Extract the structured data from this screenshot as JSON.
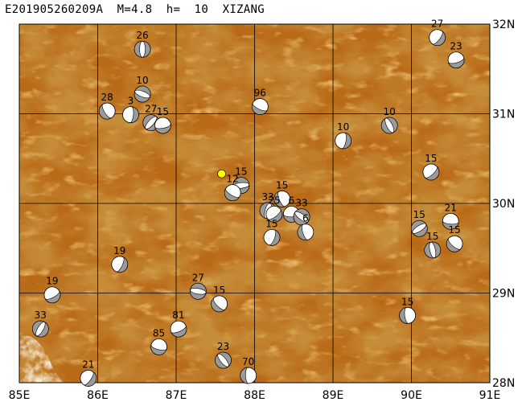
{
  "title": "E201905260209A  M=4.8  h=  10  XIZANG",
  "map": {
    "lon_range": [
      85,
      91
    ],
    "lat_range": [
      28,
      32
    ],
    "lon_ticks": [
      "85E",
      "86E",
      "87E",
      "88E",
      "89E",
      "90E",
      "91E"
    ],
    "lat_ticks": [
      "32N",
      "31N",
      "30N",
      "29N",
      "28N"
    ],
    "terrain_color": "#b96a17",
    "epicenter": {
      "lon": 87.58,
      "lat": 30.33,
      "color": "#ffff00"
    }
  },
  "mechanisms": [
    {
      "depth": "26",
      "lon": 86.57,
      "lat": 31.72
    },
    {
      "depth": "27",
      "lon": 90.33,
      "lat": 31.85
    },
    {
      "depth": "23",
      "lon": 90.57,
      "lat": 31.6
    },
    {
      "depth": "10",
      "lon": 86.57,
      "lat": 31.22
    },
    {
      "depth": "28",
      "lon": 86.12,
      "lat": 31.03
    },
    {
      "depth": "3",
      "lon": 86.42,
      "lat": 30.99
    },
    {
      "depth": "27",
      "lon": 86.68,
      "lat": 30.9
    },
    {
      "depth": "15",
      "lon": 86.83,
      "lat": 30.87
    },
    {
      "depth": "96",
      "lon": 88.07,
      "lat": 31.08
    },
    {
      "depth": "10",
      "lon": 89.72,
      "lat": 30.87
    },
    {
      "depth": "10",
      "lon": 89.13,
      "lat": 30.7
    },
    {
      "depth": "15",
      "lon": 90.25,
      "lat": 30.35
    },
    {
      "depth": "15",
      "lon": 87.83,
      "lat": 30.2
    },
    {
      "depth": "12",
      "lon": 87.72,
      "lat": 30.12
    },
    {
      "depth": "15",
      "lon": 88.35,
      "lat": 30.05
    },
    {
      "depth": "33",
      "lon": 88.17,
      "lat": 29.92
    },
    {
      "depth": "25",
      "lon": 88.25,
      "lat": 29.88
    },
    {
      "depth": "6",
      "lon": 88.47,
      "lat": 29.88
    },
    {
      "depth": "33",
      "lon": 88.6,
      "lat": 29.85
    },
    {
      "depth": "6",
      "lon": 88.65,
      "lat": 29.68
    },
    {
      "depth": "15",
      "lon": 88.22,
      "lat": 29.62
    },
    {
      "depth": "15",
      "lon": 90.1,
      "lat": 29.72
    },
    {
      "depth": "21",
      "lon": 90.5,
      "lat": 29.8
    },
    {
      "depth": "15",
      "lon": 90.55,
      "lat": 29.55
    },
    {
      "depth": "15",
      "lon": 90.27,
      "lat": 29.48
    },
    {
      "depth": "19",
      "lon": 86.28,
      "lat": 29.32
    },
    {
      "depth": "19",
      "lon": 85.42,
      "lat": 28.98
    },
    {
      "depth": "27",
      "lon": 87.28,
      "lat": 29.02
    },
    {
      "depth": "15",
      "lon": 87.55,
      "lat": 28.88
    },
    {
      "depth": "15",
      "lon": 89.95,
      "lat": 28.75
    },
    {
      "depth": "33",
      "lon": 85.27,
      "lat": 28.6
    },
    {
      "depth": "81",
      "lon": 87.03,
      "lat": 28.6
    },
    {
      "depth": "85",
      "lon": 86.78,
      "lat": 28.4
    },
    {
      "depth": "23",
      "lon": 87.6,
      "lat": 28.25
    },
    {
      "depth": "70",
      "lon": 87.92,
      "lat": 28.08
    },
    {
      "depth": "21",
      "lon": 85.88,
      "lat": 28.05
    }
  ]
}
